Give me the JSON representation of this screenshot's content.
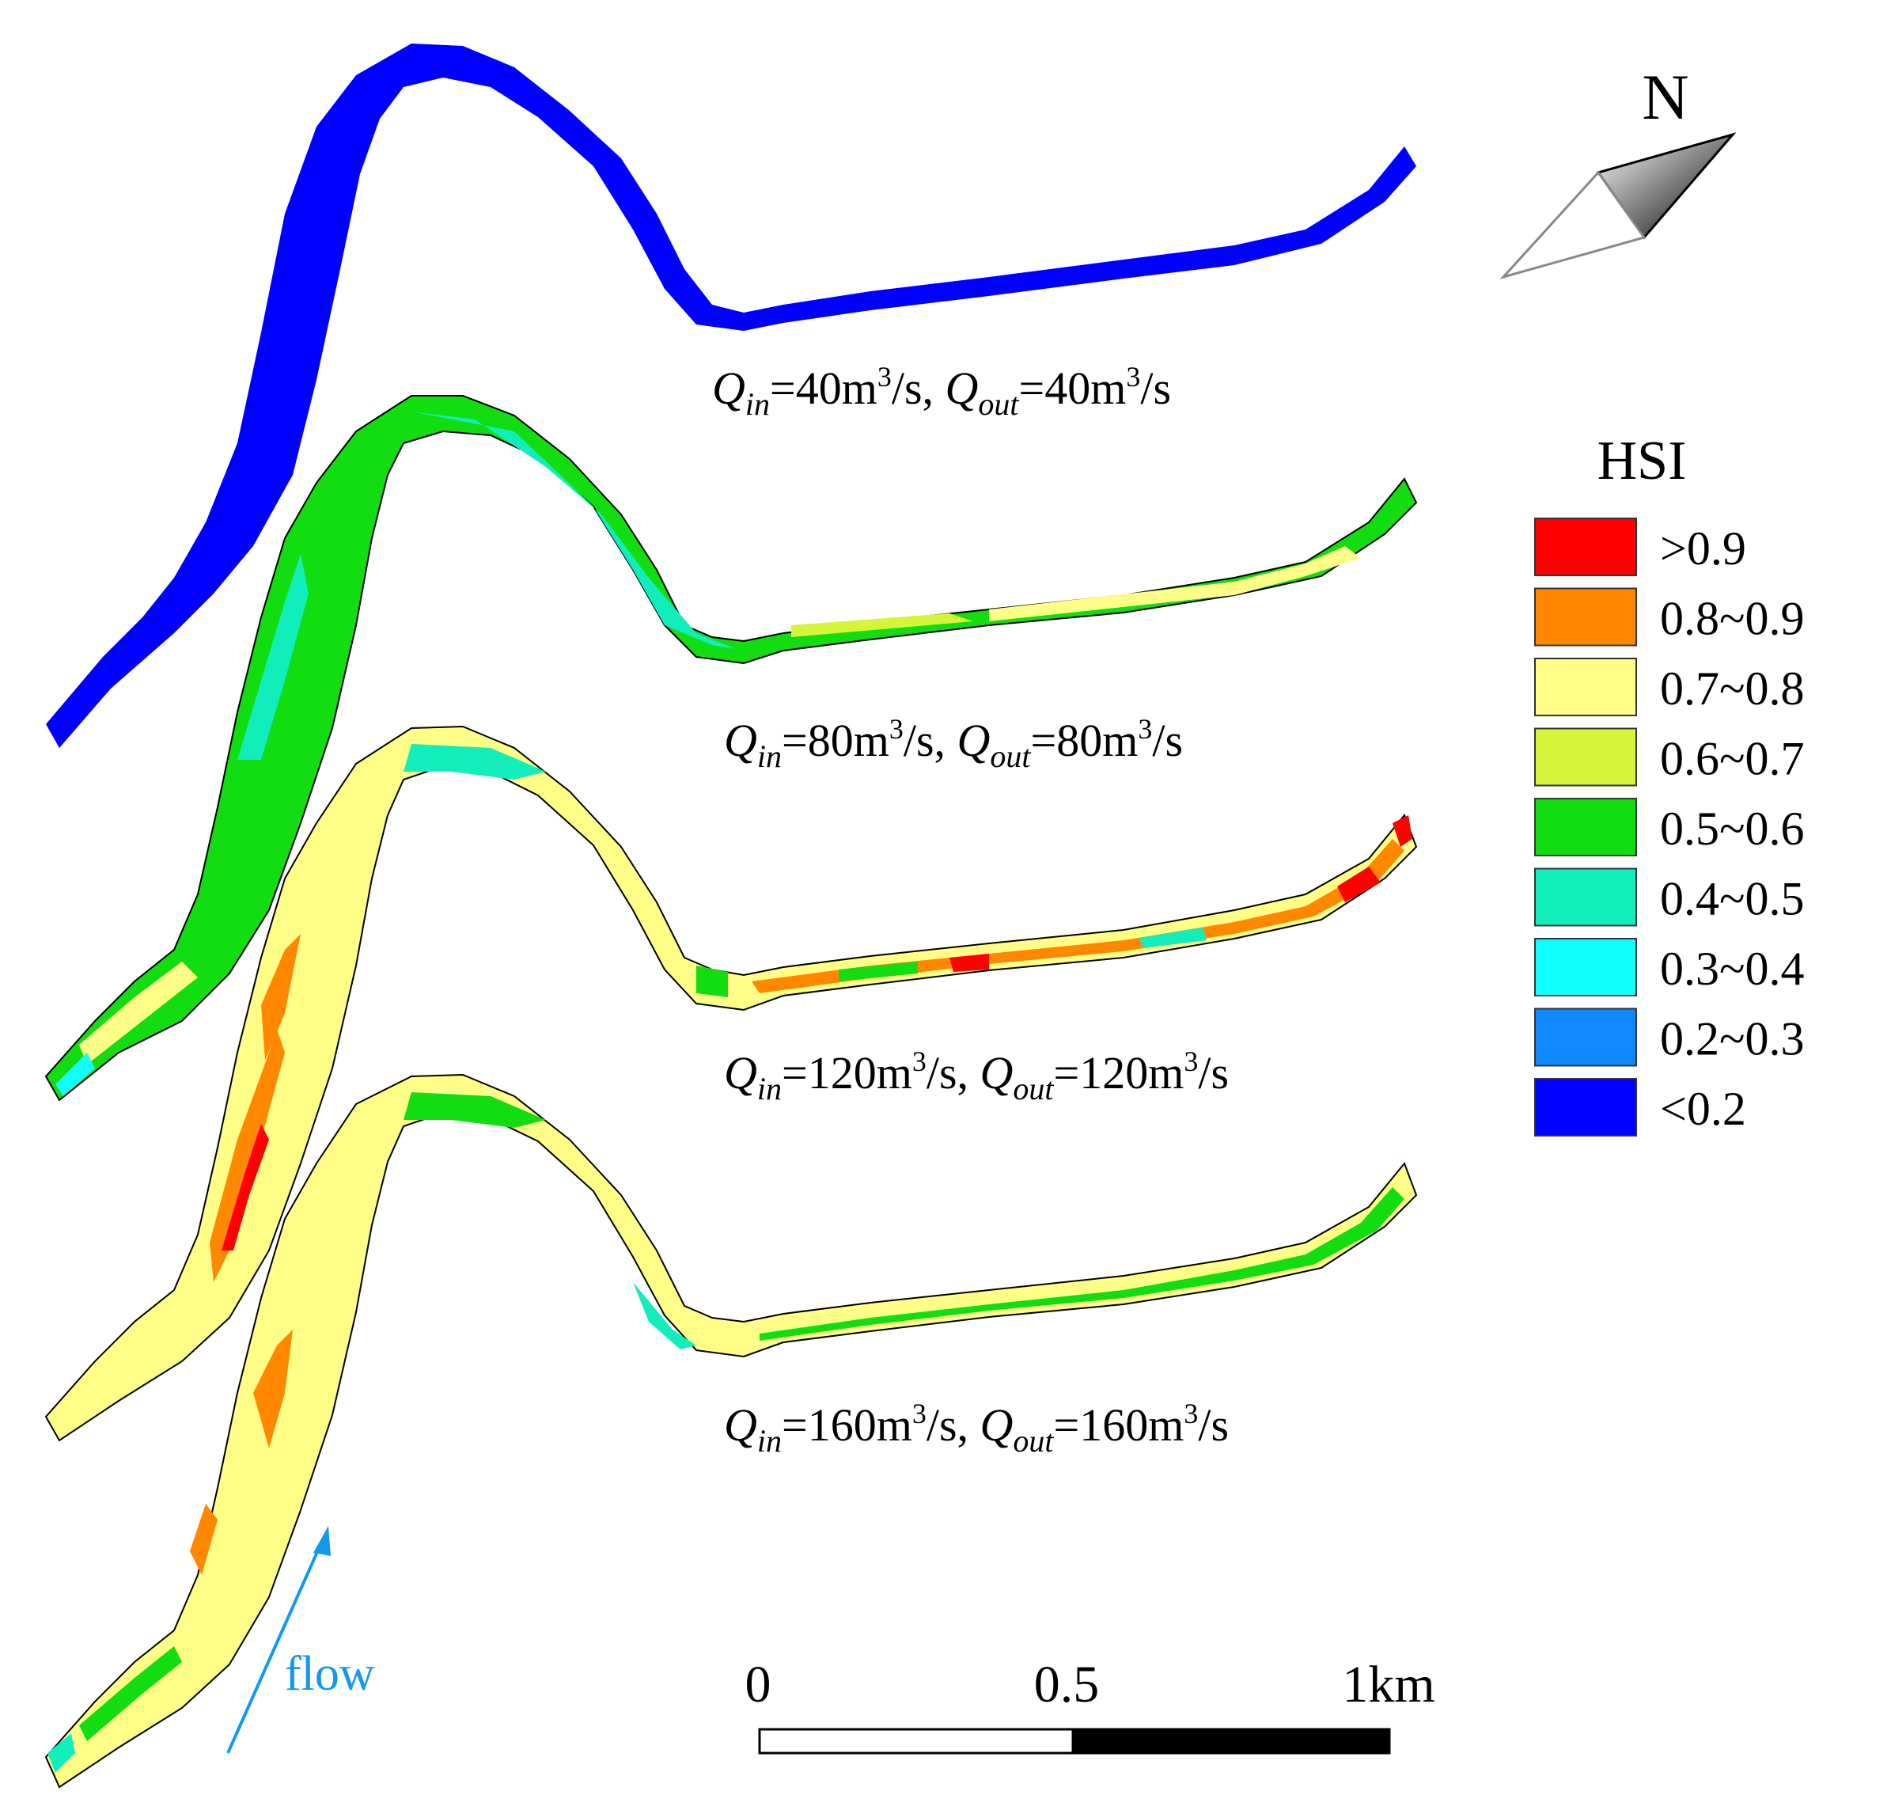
{
  "north_label": "N",
  "legend": {
    "title": "HSI",
    "items": [
      {
        "label": ">0.9",
        "color": "#ff0000"
      },
      {
        "label": "0.8~0.9",
        "color": "#ff8800"
      },
      {
        "label": "0.7~0.8",
        "color": "#ffff88"
      },
      {
        "label": "0.6~0.7",
        "color": "#d6f53a"
      },
      {
        "label": "0.5~0.6",
        "color": "#11dd11"
      },
      {
        "label": "0.4~0.5",
        "color": "#11eebb"
      },
      {
        "label": "0.3~0.4",
        "color": "#11ffff"
      },
      {
        "label": "0.2~0.3",
        "color": "#1188ff"
      },
      {
        "label": "<0.2",
        "color": "#0000ff"
      }
    ]
  },
  "scenarios": [
    {
      "q": "Q",
      "in_sub": "in",
      "in_val": "=40m",
      "in_unit": "/s, ",
      "out_sub": "out",
      "out_val": "=40m",
      "out_unit": "/s",
      "sup": "3",
      "dominant": "#0000ff"
    },
    {
      "q": "Q",
      "in_sub": "in",
      "in_val": "=80m",
      "in_unit": "/s, ",
      "out_sub": "out",
      "out_val": "=80m",
      "out_unit": "/s",
      "sup": "3",
      "dominant": "#11dd11"
    },
    {
      "q": "Q",
      "in_sub": "in",
      "in_val": "=120m",
      "in_unit": "/s, ",
      "out_sub": "out",
      "out_val": "=120m",
      "out_unit": "/s",
      "sup": "3",
      "dominant": "#ffff88"
    },
    {
      "q": "Q",
      "in_sub": "in",
      "in_val": "=160m",
      "in_unit": "/s, ",
      "out_sub": "out",
      "out_val": "=160m",
      "out_unit": "/s",
      "sup": "3",
      "dominant": "#ffff88"
    }
  ],
  "flow_label": "flow",
  "flow_color": "#1199ee",
  "scale_bar": {
    "labels": [
      "0",
      "0.5",
      "1km"
    ]
  }
}
